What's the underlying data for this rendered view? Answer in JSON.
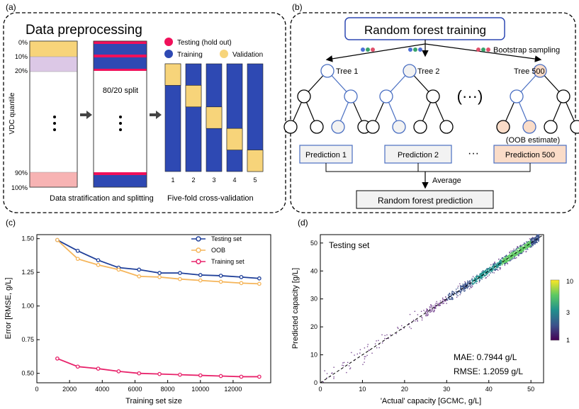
{
  "panel_a": {
    "label": "(a)",
    "title": "Data preprocessing",
    "y_axis_label": "VDC quantile",
    "quantile_ticks": [
      "0%",
      "10%",
      "20%",
      "90%",
      "100%"
    ],
    "split_label": "80/20 split",
    "legend": {
      "testing": "Testing (hold out)",
      "training": "Training",
      "validation": "Validation"
    },
    "caption_left": "Data stratification and splitting",
    "caption_right": "Five-fold cross-validation",
    "folds": [
      "1",
      "2",
      "3",
      "4",
      "5"
    ],
    "colors": {
      "testing": "#f0105a",
      "training": "#2e49b3",
      "validation": "#f7d47a",
      "low_decile": "#f7d47a",
      "second_decile": "#dcc8e6",
      "top_decile": "#f7b3b3"
    }
  },
  "panel_b": {
    "label": "(b)",
    "title": "Random forest training",
    "bootstrap_label": "Bootstrap sampling",
    "trees": [
      "Tree 1",
      "Tree 2",
      "Tree 500"
    ],
    "ellipsis": "(···)",
    "oob_label": "(OOB estimate)",
    "predictions": [
      "Prediction 1",
      "Prediction 2",
      "Prediction 500"
    ],
    "dots": "···",
    "average_label": "Average",
    "final_label": "Random forest prediction"
  },
  "panel_c": {
    "label": "(c)",
    "chart_data": {
      "type": "line",
      "xlabel": "Training set size",
      "ylabel": "Error [RMSE, g/L]",
      "xlim": [
        0,
        14300
      ],
      "ylim": [
        0.43,
        1.53
      ],
      "xticks": [
        0,
        2000,
        4000,
        6000,
        8000,
        10000,
        12000
      ],
      "xtick_labels": [
        "0",
        "2000",
        "4000",
        "6000",
        "8000",
        "10000",
        "12000"
      ],
      "yticks": [
        0.5,
        0.75,
        1.0,
        1.25,
        1.5
      ],
      "ytick_labels": [
        "0.50",
        "0.75",
        "1.00",
        "1.25",
        "1.50"
      ],
      "x": [
        1250,
        2500,
        3750,
        5000,
        6250,
        7500,
        8750,
        10000,
        11250,
        12500,
        13600
      ],
      "series": [
        {
          "name": "Testing set",
          "color": "#1f3f99",
          "values": [
            1.49,
            1.41,
            1.34,
            1.285,
            1.27,
            1.245,
            1.245,
            1.23,
            1.225,
            1.215,
            1.205
          ]
        },
        {
          "name": "OOB",
          "color": "#f5b55a",
          "values": [
            1.49,
            1.35,
            1.305,
            1.27,
            1.22,
            1.215,
            1.2,
            1.19,
            1.18,
            1.17,
            1.165
          ]
        },
        {
          "name": "Training set",
          "color": "#e8236b",
          "values": [
            0.61,
            0.55,
            0.535,
            0.515,
            0.5,
            0.495,
            0.49,
            0.485,
            0.48,
            0.475,
            0.475
          ]
        }
      ]
    }
  },
  "panel_d": {
    "label": "(d)",
    "chart_data": {
      "type": "scatter",
      "title": "Testing set",
      "xlabel": "'Actual' capacity [GCMC, g/L]",
      "ylabel": "Predicted capacity [g/L]",
      "xlim": [
        0,
        53
      ],
      "ylim": [
        0,
        53
      ],
      "xticks": [
        0,
        10,
        20,
        30,
        40,
        50
      ],
      "yticks": [
        0,
        10,
        20,
        30,
        40,
        50
      ],
      "tick_labels": [
        "0",
        "10",
        "20",
        "30",
        "40",
        "50"
      ],
      "mae": "MAE: 0.7944 g/L",
      "rmse": "RMSE: 1.2059 g/L",
      "colorbar_ticks": [
        "10",
        "3",
        "1"
      ]
    }
  }
}
